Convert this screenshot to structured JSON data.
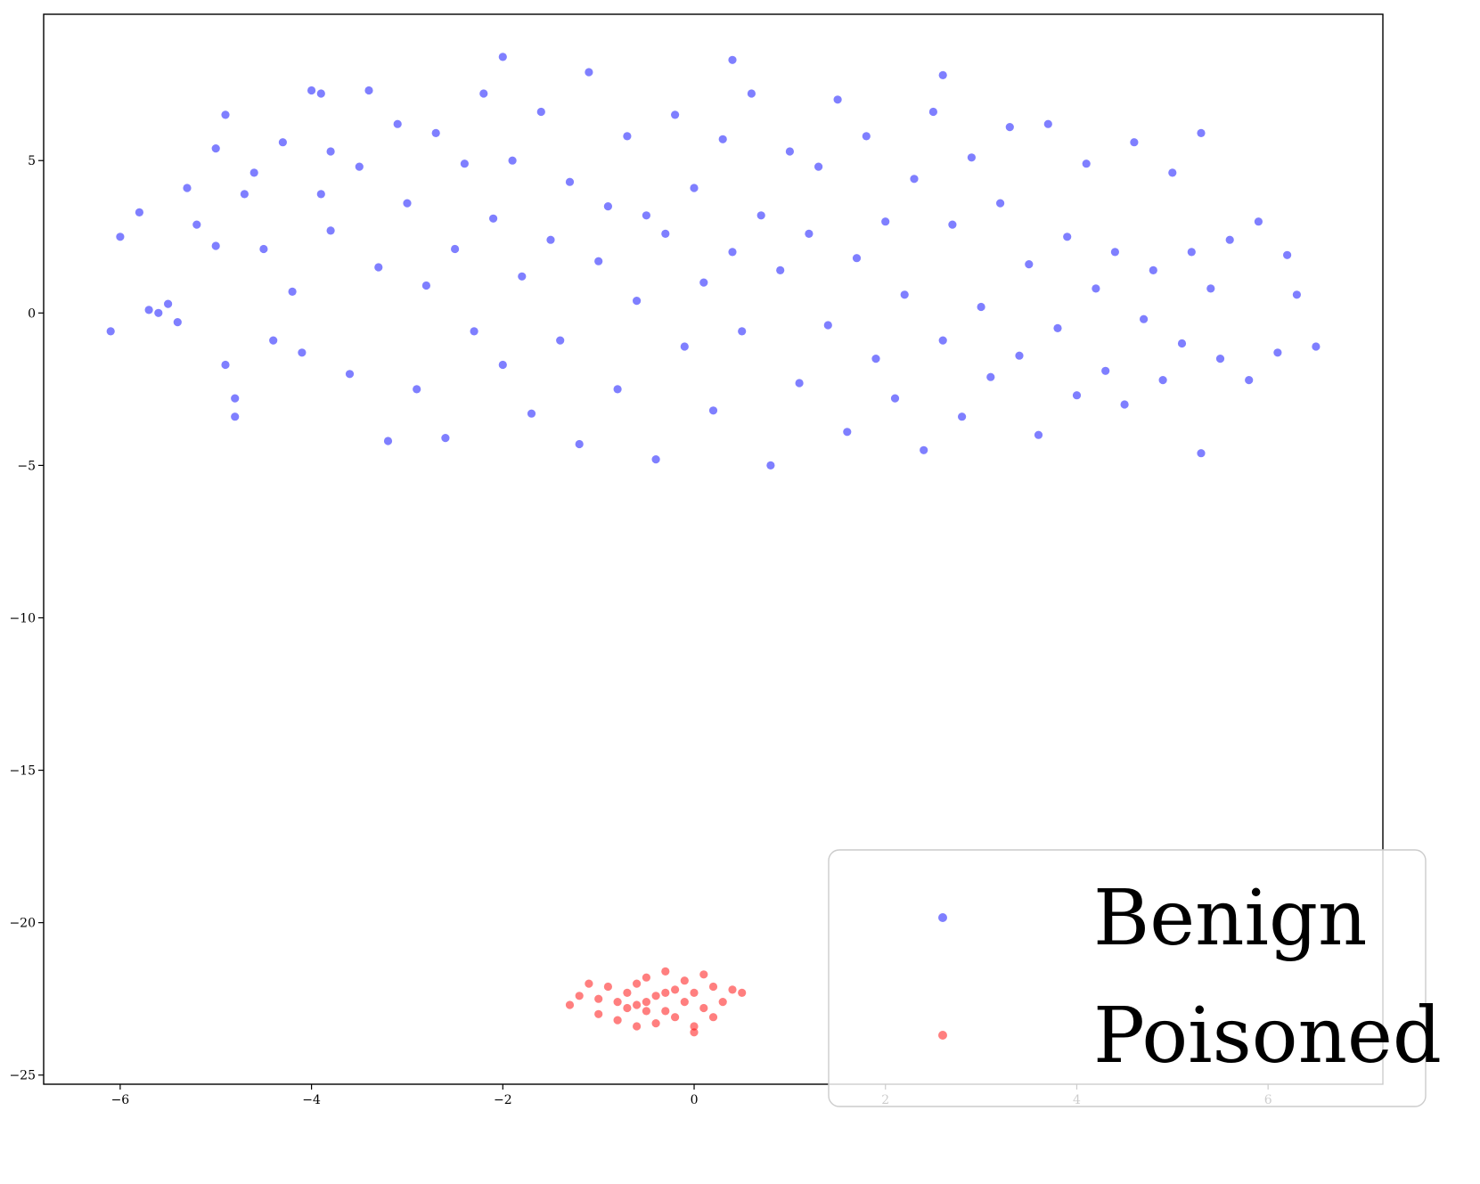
{
  "chart_data": {
    "type": "scatter",
    "title": "",
    "xlabel": "",
    "ylabel": "",
    "xlim": [
      -6.8,
      7.2
    ],
    "ylim": [
      -25.3,
      9.8
    ],
    "xticks": [
      -6,
      -4,
      -2,
      0,
      2,
      4,
      6
    ],
    "yticks": [
      5,
      0,
      -5,
      -10,
      -15,
      -20,
      -25
    ],
    "xtick_labels": [
      "−6",
      "−4",
      "−2",
      "0",
      "2",
      "4",
      "6"
    ],
    "ytick_labels": [
      "5",
      "0",
      "−5",
      "−10",
      "−15",
      "−20",
      "−25"
    ],
    "grid": false,
    "legend_position": "lower-right",
    "series": [
      {
        "name": "Benign",
        "color": "#0000ff",
        "alpha": 0.5,
        "points": [
          [
            -6.1,
            -0.6
          ],
          [
            -6.0,
            2.5
          ],
          [
            -5.8,
            3.3
          ],
          [
            -5.7,
            0.1
          ],
          [
            -5.6,
            0.0
          ],
          [
            -5.5,
            0.3
          ],
          [
            -5.4,
            -0.3
          ],
          [
            -5.3,
            4.1
          ],
          [
            -5.2,
            2.9
          ],
          [
            -5.0,
            5.4
          ],
          [
            -5.0,
            2.2
          ],
          [
            -4.9,
            -1.7
          ],
          [
            -4.9,
            6.5
          ],
          [
            -4.8,
            -2.8
          ],
          [
            -4.8,
            -3.4
          ],
          [
            -4.7,
            3.9
          ],
          [
            -4.6,
            4.6
          ],
          [
            -4.5,
            2.1
          ],
          [
            -4.4,
            -0.9
          ],
          [
            -4.3,
            5.6
          ],
          [
            -4.2,
            0.7
          ],
          [
            -4.1,
            -1.3
          ],
          [
            -4.0,
            7.3
          ],
          [
            -3.9,
            3.9
          ],
          [
            -3.8,
            5.3
          ],
          [
            -3.8,
            2.7
          ],
          [
            -3.6,
            -2.0
          ],
          [
            -3.5,
            4.8
          ],
          [
            -3.4,
            7.3
          ],
          [
            -3.3,
            1.5
          ],
          [
            -3.2,
            -4.2
          ],
          [
            -3.1,
            6.2
          ],
          [
            -3.0,
            3.6
          ],
          [
            -2.9,
            -2.5
          ],
          [
            -2.8,
            0.9
          ],
          [
            -2.7,
            5.9
          ],
          [
            -2.6,
            -4.1
          ],
          [
            -2.5,
            2.1
          ],
          [
            -2.4,
            4.9
          ],
          [
            -2.3,
            -0.6
          ],
          [
            -2.2,
            7.2
          ],
          [
            -2.1,
            3.1
          ],
          [
            -2.0,
            -1.7
          ],
          [
            -1.9,
            5.0
          ],
          [
            -1.8,
            1.2
          ],
          [
            -1.7,
            -3.3
          ],
          [
            -1.6,
            6.6
          ],
          [
            -1.5,
            2.4
          ],
          [
            -1.4,
            -0.9
          ],
          [
            -1.3,
            4.3
          ],
          [
            -1.2,
            -4.3
          ],
          [
            -1.1,
            7.9
          ],
          [
            -1.0,
            1.7
          ],
          [
            -0.9,
            3.5
          ],
          [
            -0.8,
            -2.5
          ],
          [
            -0.7,
            5.8
          ],
          [
            -0.6,
            0.4
          ],
          [
            -0.5,
            3.2
          ],
          [
            -0.4,
            -4.8
          ],
          [
            -0.3,
            2.6
          ],
          [
            -0.2,
            6.5
          ],
          [
            -0.1,
            -1.1
          ],
          [
            0.0,
            4.1
          ],
          [
            0.1,
            1.0
          ],
          [
            0.2,
            -3.2
          ],
          [
            0.3,
            5.7
          ],
          [
            0.4,
            2.0
          ],
          [
            0.5,
            -0.6
          ],
          [
            0.6,
            7.2
          ],
          [
            0.7,
            3.2
          ],
          [
            0.8,
            -5.0
          ],
          [
            0.9,
            1.4
          ],
          [
            1.0,
            5.3
          ],
          [
            1.1,
            -2.3
          ],
          [
            1.2,
            2.6
          ],
          [
            1.3,
            4.8
          ],
          [
            1.4,
            -0.4
          ],
          [
            1.5,
            7.0
          ],
          [
            1.6,
            -3.9
          ],
          [
            1.7,
            1.8
          ],
          [
            1.8,
            5.8
          ],
          [
            1.9,
            -1.5
          ],
          [
            2.0,
            3.0
          ],
          [
            2.1,
            -2.8
          ],
          [
            2.2,
            0.6
          ],
          [
            2.3,
            4.4
          ],
          [
            2.4,
            -4.5
          ],
          [
            2.5,
            6.6
          ],
          [
            2.6,
            -0.9
          ],
          [
            2.7,
            2.9
          ],
          [
            2.8,
            -3.4
          ],
          [
            2.9,
            5.1
          ],
          [
            3.0,
            0.2
          ],
          [
            3.1,
            -2.1
          ],
          [
            3.2,
            3.6
          ],
          [
            3.3,
            6.1
          ],
          [
            3.4,
            -1.4
          ],
          [
            3.5,
            1.6
          ],
          [
            3.6,
            -4.0
          ],
          [
            3.7,
            6.2
          ],
          [
            3.8,
            -0.5
          ],
          [
            3.9,
            2.5
          ],
          [
            4.0,
            -2.7
          ],
          [
            4.1,
            4.9
          ],
          [
            4.2,
            0.8
          ],
          [
            4.3,
            -1.9
          ],
          [
            4.4,
            2.0
          ],
          [
            4.5,
            -3.0
          ],
          [
            4.6,
            5.6
          ],
          [
            4.7,
            -0.2
          ],
          [
            4.8,
            1.4
          ],
          [
            4.9,
            -2.2
          ],
          [
            5.0,
            4.6
          ],
          [
            5.1,
            -1.0
          ],
          [
            5.2,
            2.0
          ],
          [
            5.3,
            -4.6
          ],
          [
            5.4,
            0.8
          ],
          [
            5.5,
            -1.5
          ],
          [
            5.6,
            2.4
          ],
          [
            5.8,
            -2.2
          ],
          [
            5.9,
            3.0
          ],
          [
            6.1,
            -1.3
          ],
          [
            6.2,
            1.9
          ],
          [
            6.3,
            0.6
          ],
          [
            6.5,
            -1.1
          ],
          [
            5.3,
            5.9
          ],
          [
            -3.9,
            7.2
          ],
          [
            2.6,
            7.8
          ],
          [
            0.4,
            8.3
          ],
          [
            -2.0,
            8.4
          ]
        ]
      },
      {
        "name": "Poisoned",
        "color": "#ff0000",
        "alpha": 0.5,
        "points": [
          [
            -1.3,
            -22.7
          ],
          [
            -1.2,
            -22.4
          ],
          [
            -1.1,
            -22.0
          ],
          [
            -1.0,
            -23.0
          ],
          [
            -1.0,
            -22.5
          ],
          [
            -0.9,
            -22.1
          ],
          [
            -0.8,
            -23.2
          ],
          [
            -0.8,
            -22.6
          ],
          [
            -0.7,
            -22.3
          ],
          [
            -0.7,
            -22.8
          ],
          [
            -0.6,
            -23.4
          ],
          [
            -0.6,
            -22.0
          ],
          [
            -0.5,
            -22.6
          ],
          [
            -0.5,
            -21.8
          ],
          [
            -0.4,
            -23.3
          ],
          [
            -0.4,
            -22.4
          ],
          [
            -0.3,
            -22.9
          ],
          [
            -0.3,
            -21.6
          ],
          [
            -0.2,
            -22.2
          ],
          [
            -0.2,
            -23.1
          ],
          [
            -0.1,
            -22.6
          ],
          [
            -0.1,
            -21.9
          ],
          [
            0.0,
            -23.4
          ],
          [
            0.0,
            -22.3
          ],
          [
            0.1,
            -22.8
          ],
          [
            0.1,
            -21.7
          ],
          [
            0.2,
            -23.1
          ],
          [
            0.2,
            -22.1
          ],
          [
            0.3,
            -22.6
          ],
          [
            0.4,
            -22.2
          ],
          [
            0.5,
            -22.3
          ],
          [
            -0.5,
            -22.9
          ],
          [
            -0.6,
            -22.7
          ],
          [
            -0.3,
            -22.3
          ],
          [
            0.0,
            -23.6
          ]
        ]
      }
    ]
  }
}
